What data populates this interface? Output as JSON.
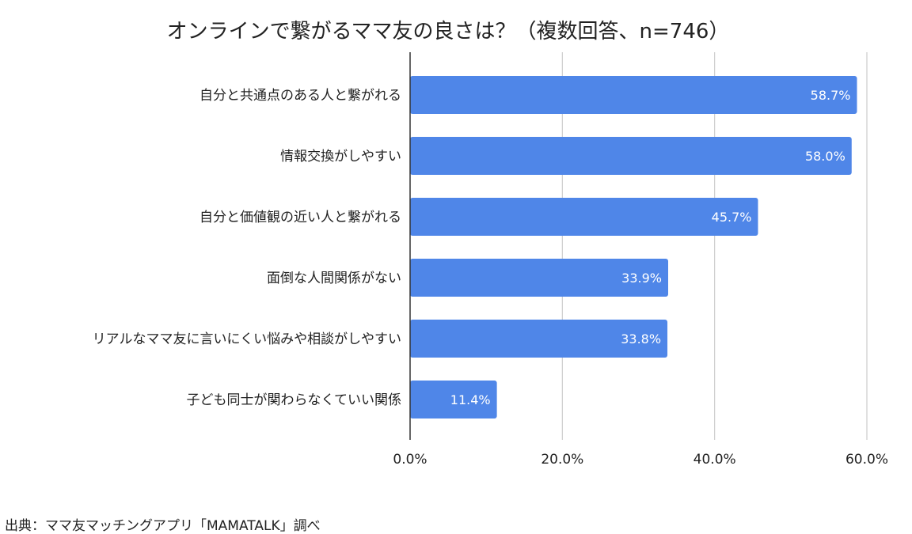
{
  "chart_data": {
    "type": "bar",
    "orientation": "horizontal",
    "title": "オンラインで繋がるママ友の良さは？（複数回答、n=746）",
    "categories": [
      "自分と共通点のある人と繋がれる",
      "情報交換がしやすい",
      "自分と価値観の近い人と繋がれる",
      "面倒な人間関係がない",
      "リアルなママ友に言いにくい悩みや相談がしやすい",
      "子ども同士が関わらなくていい関係"
    ],
    "values": [
      58.7,
      58.0,
      45.7,
      33.9,
      33.8,
      11.4
    ],
    "data_labels": [
      "58.7%",
      "58.0%",
      "45.7%",
      "33.9%",
      "33.8%",
      "11.4%"
    ],
    "xlim": [
      0,
      60
    ],
    "xticks": [
      0,
      20,
      40,
      60
    ],
    "xtick_labels": [
      "0.0%",
      "20.0%",
      "40.0%",
      "60.0%"
    ],
    "xlabel": "",
    "ylabel": "",
    "grid": true,
    "legend": "none",
    "colors": {
      "bar": "#4f86e8",
      "grid": "#cccccc",
      "axis": "#333333",
      "data_label": "#ffffff",
      "text": "#222222"
    }
  },
  "source": "出典：ママ友マッチングアプリ「MAMATALK」調べ"
}
